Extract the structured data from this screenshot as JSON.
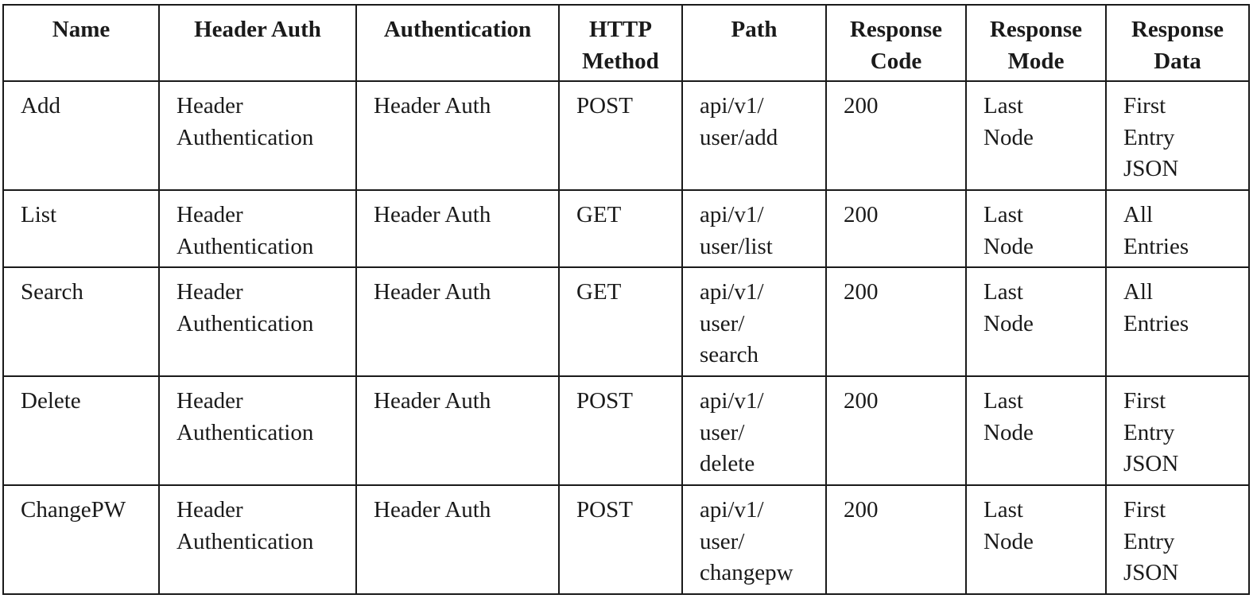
{
  "table": {
    "headers": [
      "Name",
      "Header Auth",
      "Authentication",
      "HTTP\nMethod",
      "Path",
      "Response\nCode",
      "Response\nMode",
      "Response\nData"
    ],
    "rows": [
      {
        "name": "Add",
        "header_auth": "Header\nAuthentication",
        "authentication": "Header Auth",
        "http_method": "POST",
        "path": "api/v1/\nuser/add",
        "response_code": "200",
        "response_mode": "Last\nNode",
        "response_data": "First\nEntry\nJSON"
      },
      {
        "name": "List",
        "header_auth": "Header\nAuthentication",
        "authentication": "Header Auth",
        "http_method": "GET",
        "path": "api/v1/\nuser/list",
        "response_code": "200",
        "response_mode": "Last\nNode",
        "response_data": "All\nEntries"
      },
      {
        "name": "Search",
        "header_auth": "Header\nAuthentication",
        "authentication": "Header Auth",
        "http_method": "GET",
        "path": "api/v1/\nuser/\nsearch",
        "response_code": "200",
        "response_mode": "Last\nNode",
        "response_data": "All\nEntries"
      },
      {
        "name": "Delete",
        "header_auth": "Header\nAuthentication",
        "authentication": "Header Auth",
        "http_method": "POST",
        "path": "api/v1/\nuser/\ndelete",
        "response_code": "200",
        "response_mode": "Last\nNode",
        "response_data": "First\nEntry\nJSON"
      },
      {
        "name": "ChangePW",
        "header_auth": "Header\nAuthentication",
        "authentication": "Header Auth",
        "http_method": "POST",
        "path": "api/v1/\nuser/\nchangepw",
        "response_code": "200",
        "response_mode": "Last\nNode",
        "response_data": "First\nEntry\nJSON"
      }
    ]
  }
}
